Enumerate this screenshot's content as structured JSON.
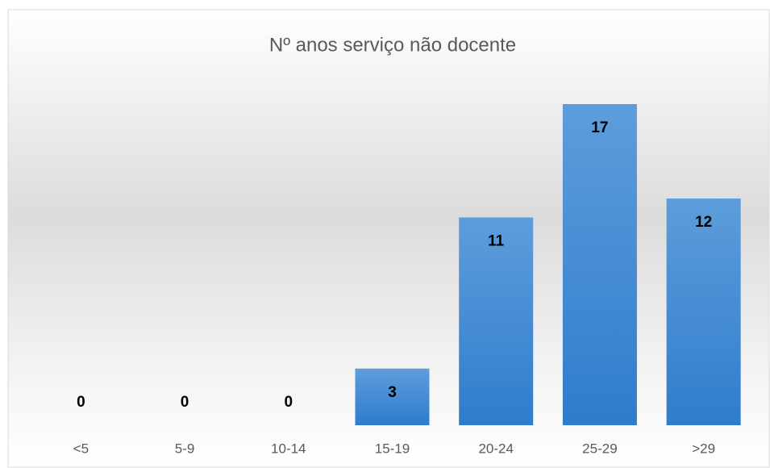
{
  "chart_data": {
    "type": "bar",
    "title": "Nº anos serviço não docente",
    "categories": [
      "<5",
      "5-9",
      "10-14",
      "15-19",
      "20-24",
      "25-29",
      ">29"
    ],
    "values": [
      0,
      0,
      0,
      3,
      11,
      17,
      12
    ],
    "color": "#4a8dd6"
  }
}
